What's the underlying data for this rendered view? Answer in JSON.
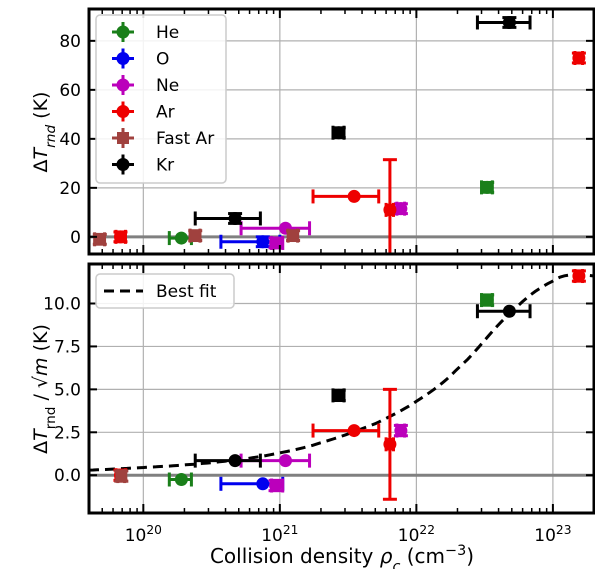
{
  "chart_data": [
    {
      "type": "scatter",
      "ylabel": "ΔT_rnd (K)",
      "ylim": [
        -7,
        93
      ],
      "yticks": [
        0,
        20,
        40,
        60,
        80
      ],
      "x_scale": "log",
      "xlim": [
        4e+19,
        2e+23
      ],
      "grid": true,
      "legend": "upper-left",
      "series": [
        {
          "name": "He",
          "color": "#1a7f1a",
          "marker": "circle",
          "points": [
            {
              "x": 1.9e+20,
              "xlo": 1.55e+20,
              "xhi": 2.25e+20,
              "y": -0.5
            },
            {
              "x": 3.3e+22,
              "xlo": 3e+22,
              "xhi": 3.6e+22,
              "y": 20.2,
              "yerr": 2
            }
          ]
        },
        {
          "name": "O",
          "color": "#0000ee",
          "marker": "circle",
          "points": [
            {
              "x": 7.5e+20,
              "xlo": 3.7e+20,
              "xhi": 1e+21,
              "y": -2.0,
              "yerr": 2
            }
          ]
        },
        {
          "name": "Ne",
          "color": "#bb00bb",
          "marker": "circle",
          "points": [
            {
              "x": 1.1e+21,
              "xlo": 5.2e+20,
              "xhi": 1.65e+21,
              "y": 3.5
            },
            {
              "x": 9.3e+20,
              "xlo": 8.7e+20,
              "xhi": 1.05e+21,
              "y": -2.5,
              "yerr": 2
            },
            {
              "x": 7.7e+21,
              "xlo": 7.2e+21,
              "xhi": 8.2e+21,
              "y": 11.5,
              "yerr": 2
            }
          ]
        },
        {
          "name": "Ar",
          "color": "#ee0000",
          "marker": "circle",
          "points": [
            {
              "x": 6.8e+19,
              "xlo": 6.3e+19,
              "xhi": 7.4e+19,
              "y": 0.0,
              "yerr": 2
            },
            {
              "x": 3.5e+21,
              "xlo": 1.75e+21,
              "xhi": 5.3e+21,
              "y": 16.5
            },
            {
              "x": 6.4e+21,
              "xlo": 6e+21,
              "xhi": 6.8e+21,
              "y": 11.0,
              "yerr": 20.5
            },
            {
              "x": 1.55e+23,
              "xlo": 1.45e+23,
              "xhi": 1.65e+23,
              "y": 73.0,
              "yerr": 2
            }
          ]
        },
        {
          "name": "Fast Ar",
          "color": "#a0413e",
          "marker": "square",
          "points": [
            {
              "x": 4.8e+19,
              "xlo": 4.4e+19,
              "xhi": 5.2e+19,
              "y": -1.0,
              "yerr": 2
            },
            {
              "x": 2.4e+20,
              "xlo": 2.2e+20,
              "xhi": 2.6e+20,
              "y": 0.5,
              "yerr": 2
            },
            {
              "x": 1.25e+21,
              "xlo": 1.15e+21,
              "xhi": 1.35e+21,
              "y": 0.5,
              "yerr": 2
            }
          ]
        },
        {
          "name": "Kr",
          "color": "#000000",
          "marker": "circle",
          "points": [
            {
              "x": 4.7e+20,
              "xlo": 2.4e+20,
              "xhi": 7.2e+20,
              "y": 7.5,
              "yerr": 2
            },
            {
              "x": 2.7e+21,
              "xlo": 2.45e+21,
              "xhi": 2.95e+21,
              "y": 42.5,
              "yerr": 2
            },
            {
              "x": 4.8e+22,
              "xlo": 2.8e+22,
              "xhi": 6.8e+22,
              "y": 87.5,
              "yerr": 2
            }
          ]
        }
      ]
    },
    {
      "type": "scatter",
      "xlabel": "Collision density ρ_c (cm⁻³)",
      "ylabel": "ΔT_rnd / √m (K)",
      "ylim": [
        -2.2,
        12.3
      ],
      "yticks": [
        "0.0",
        "2.5",
        "5.0",
        "7.5",
        "10.0"
      ],
      "x_scale": "log",
      "xlim": [
        4e+19,
        2e+23
      ],
      "xticks": [
        {
          "v": 1e+20,
          "label": "10^20"
        },
        {
          "v": 1e+21,
          "label": "10^21"
        },
        {
          "v": 1e+22,
          "label": "10^22"
        },
        {
          "v": 1e+23,
          "label": "10^23"
        }
      ],
      "grid": true,
      "legend": "upper-left",
      "fit": {
        "name": "Best fit",
        "style": "dashed",
        "color": "#000000",
        "x": [
          4e+19,
          1e+20,
          2e+20,
          5e+20,
          1e+21,
          2e+21,
          5e+21,
          1e+22,
          2e+22,
          5e+22,
          1e+23,
          1.5e+23,
          2e+23
        ],
        "y": [
          0.3,
          0.45,
          0.6,
          0.9,
          1.3,
          1.9,
          3.0,
          4.3,
          6.2,
          9.5,
          11.3,
          11.7,
          11.6
        ]
      },
      "series": [
        {
          "color": "#1a7f1a",
          "marker": "circle",
          "points": [
            {
              "x": 1.9e+20,
              "xlo": 1.55e+20,
              "xhi": 2.25e+20,
              "y": -0.25
            },
            {
              "x": 3.3e+22,
              "xlo": 3e+22,
              "xhi": 3.6e+22,
              "y": 10.2,
              "yerr": 0.3
            }
          ]
        },
        {
          "color": "#0000ee",
          "marker": "circle",
          "points": [
            {
              "x": 7.5e+20,
              "xlo": 3.7e+20,
              "xhi": 1.05e+21,
              "y": -0.5
            }
          ]
        },
        {
          "color": "#bb00bb",
          "marker": "circle",
          "points": [
            {
              "x": 1.1e+21,
              "xlo": 5.2e+20,
              "xhi": 1.65e+21,
              "y": 0.85
            },
            {
              "x": 9.3e+20,
              "xlo": 8.7e+20,
              "xhi": 1.05e+21,
              "y": -0.6,
              "yerr": 0.3
            },
            {
              "x": 7.7e+21,
              "xlo": 7.2e+21,
              "xhi": 8.2e+21,
              "y": 2.6,
              "yerr": 0.3
            }
          ]
        },
        {
          "color": "#ee0000",
          "marker": "circle",
          "points": [
            {
              "x": 6.8e+19,
              "xlo": 6.3e+19,
              "xhi": 7.4e+19,
              "y": 0.0,
              "yerr": 0.3
            },
            {
              "x": 3.5e+21,
              "xlo": 1.75e+21,
              "xhi": 5.3e+21,
              "y": 2.6
            },
            {
              "x": 6.4e+21,
              "xlo": 6e+21,
              "xhi": 6.8e+21,
              "y": 1.8,
              "yerr": 3.2
            },
            {
              "x": 1.55e+23,
              "xlo": 1.45e+23,
              "xhi": 1.65e+23,
              "y": 11.6,
              "yerr": 0.3
            }
          ]
        },
        {
          "color": "#a0413e",
          "marker": "square",
          "points": [
            {
              "x": 6.9e+19,
              "xlo": 6.5e+19,
              "xhi": 7.3e+19,
              "y": -0.05,
              "yerr": 0.3
            }
          ]
        },
        {
          "color": "#000000",
          "marker": "circle",
          "points": [
            {
              "x": 4.7e+20,
              "xlo": 2.4e+20,
              "xhi": 7.2e+20,
              "y": 0.85
            },
            {
              "x": 2.7e+21,
              "xlo": 2.45e+21,
              "xhi": 2.95e+21,
              "y": 4.65,
              "yerr": 0.3
            },
            {
              "x": 4.8e+22,
              "xlo": 2.8e+22,
              "xhi": 6.8e+22,
              "y": 9.55
            }
          ]
        }
      ]
    }
  ]
}
